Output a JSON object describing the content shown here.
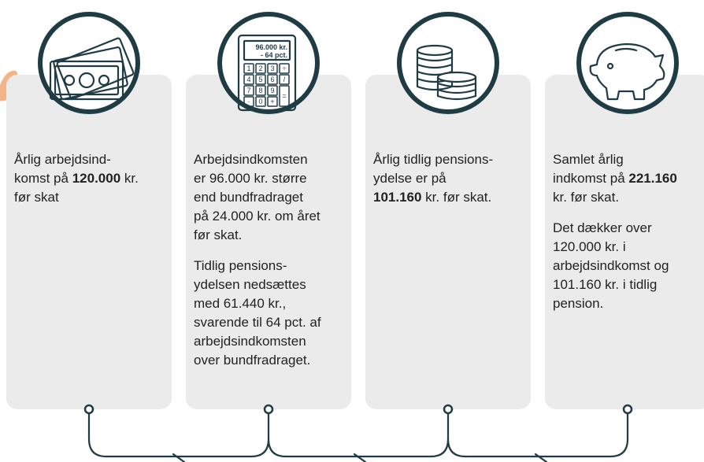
{
  "calculator": {
    "display": [
      "96.000 kr.",
      "- 64 pct."
    ],
    "keys": [
      "1",
      "2",
      "3",
      "÷",
      "4",
      "5",
      "6",
      "/",
      "7",
      "8",
      "9",
      "=",
      "·",
      "0",
      "+"
    ]
  },
  "cards": [
    {
      "paragraphs": [
        {
          "lines": [
            [
              "Årlig arbejdsind-"
            ],
            [
              "komst på ",
              {
                "bold": "120.000"
              },
              " kr."
            ],
            [
              "før skat"
            ]
          ]
        }
      ]
    },
    {
      "paragraphs": [
        {
          "lines": [
            [
              "Arbejdsindkomsten"
            ],
            [
              "er 96.000 kr. større"
            ],
            [
              "end bundfradraget"
            ],
            [
              "på 24.000 kr. om året"
            ],
            [
              "før skat."
            ]
          ]
        },
        {
          "lines": [
            [
              "Tidlig pensions-"
            ],
            [
              "ydelsen nedsættes"
            ],
            [
              "med 61.440 kr.,"
            ],
            [
              "svarende til 64 pct. af"
            ],
            [
              "arbejdsindkomsten"
            ],
            [
              "over bundfradraget."
            ]
          ]
        }
      ]
    },
    {
      "paragraphs": [
        {
          "lines": [
            [
              "Årlig tidlig pensions-"
            ],
            [
              "ydelse er på"
            ],
            [
              {
                "bold": "101.160"
              },
              " kr. før skat."
            ]
          ]
        }
      ]
    },
    {
      "paragraphs": [
        {
          "lines": [
            [
              "Samlet årlig"
            ],
            [
              "indkomst på ",
              {
                "bold": "221.160"
              }
            ],
            [
              "kr. før skat."
            ]
          ]
        },
        {
          "lines": [
            [
              "Det dækker over"
            ],
            [
              "120.000 kr. i"
            ],
            [
              "arbejdsindkomst og"
            ],
            [
              "101.160 kr. i tidlig"
            ],
            [
              "pension."
            ]
          ]
        }
      ]
    }
  ]
}
